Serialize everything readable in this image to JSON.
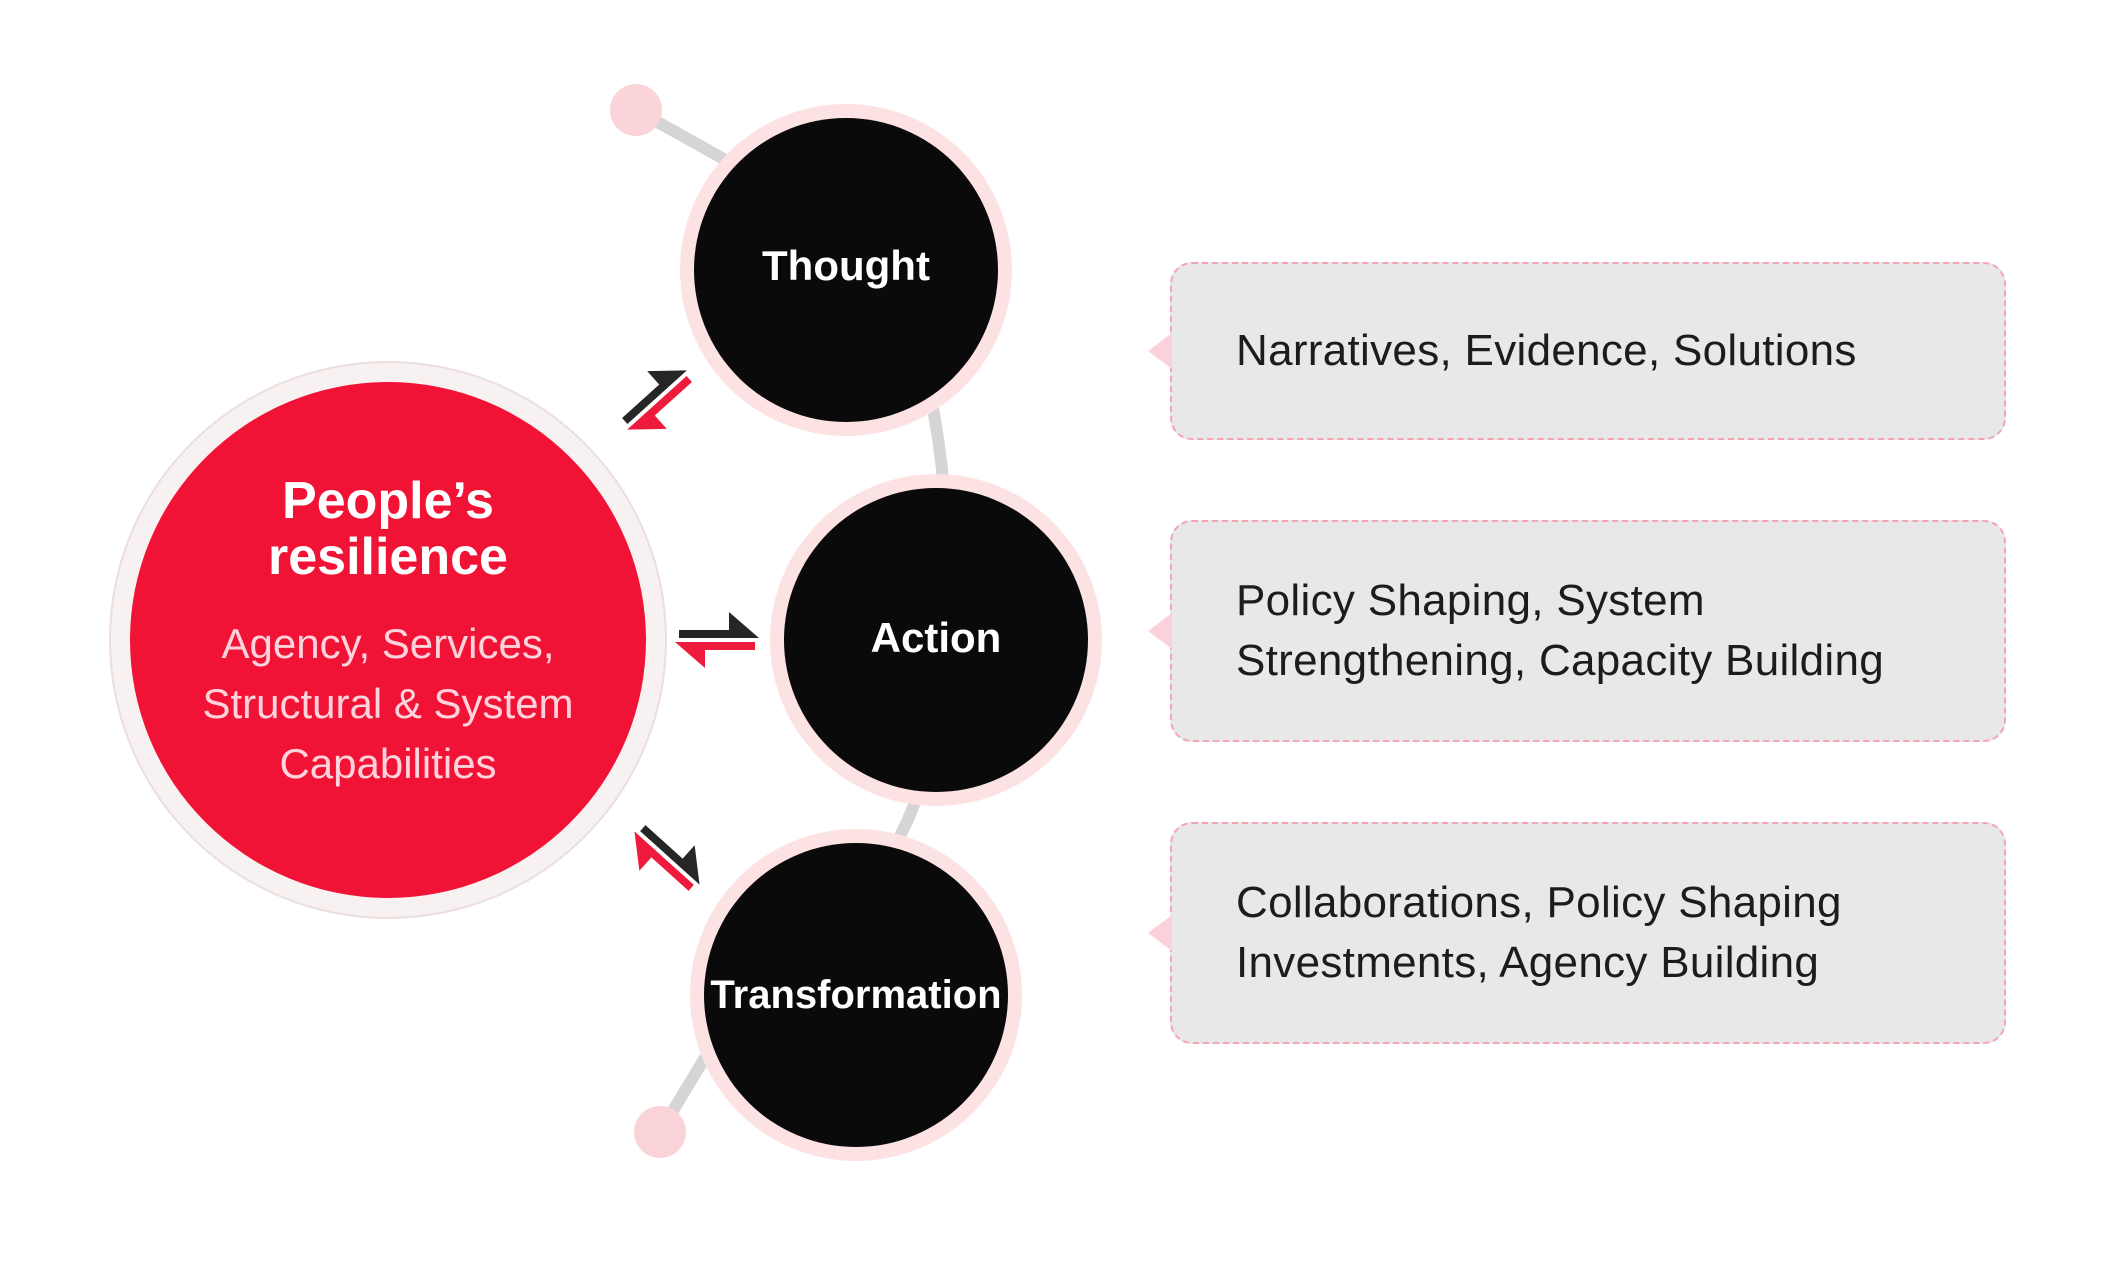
{
  "hub": {
    "title_line1": "People’s",
    "title_line2": "resilience",
    "subtitle_line1": "Agency, Services,",
    "subtitle_line2": "Structural & System",
    "subtitle_line3": "Capabilities"
  },
  "stages": [
    {
      "label": "Thought",
      "description": [
        "Narratives, Evidence, Solutions"
      ]
    },
    {
      "label": "Action",
      "description": [
        "Policy Shaping, System",
        "Strengthening, Capacity Building"
      ]
    },
    {
      "label": "Transformation",
      "description": [
        "Collaborations, Policy Shaping",
        "Investments, Agency Building"
      ]
    }
  ],
  "colors": {
    "hub_red": "#f11336",
    "hub_ring": "#f7f1f1",
    "stage_fill": "#0a0a0a",
    "stage_ring": "#fde2e4",
    "connector": "#d5d5d5",
    "end_dot": "#fbd4da",
    "arrow_dark": "#262626",
    "arrow_red": "#ee1b3c",
    "box_bg": "#e8e8e8",
    "box_border": "#f4a5b4"
  }
}
